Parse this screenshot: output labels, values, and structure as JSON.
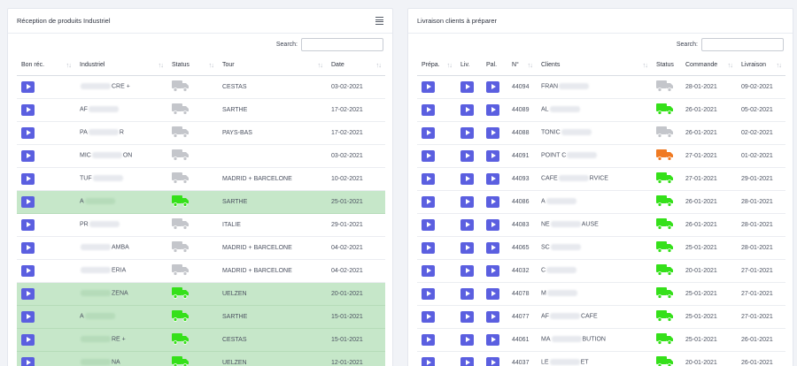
{
  "left": {
    "title": "Réception de produits Industriel",
    "search_label": "Search:",
    "search_value": "",
    "columns": [
      "Bon réc.",
      "Industriel",
      "Status",
      "Tour",
      "Date"
    ],
    "rows": [
      {
        "industriel_a": "",
        "industriel_b": "CRE +",
        "status": "grey",
        "tour": "CESTAS",
        "date": "03-02-2021",
        "green": false
      },
      {
        "industriel_a": "AF",
        "industriel_b": "",
        "status": "grey",
        "tour": "SARTHE",
        "date": "17-02-2021",
        "green": false
      },
      {
        "industriel_a": "PA",
        "industriel_b": "R",
        "status": "grey",
        "tour": "PAYS-BAS",
        "date": "17-02-2021",
        "green": false
      },
      {
        "industriel_a": "MIC",
        "industriel_b": "ON",
        "status": "grey",
        "tour": "",
        "date": "03-02-2021",
        "green": false
      },
      {
        "industriel_a": "TUF",
        "industriel_b": "",
        "status": "grey",
        "tour": "MADRID + BARCELONE",
        "date": "10-02-2021",
        "green": false
      },
      {
        "industriel_a": "A",
        "industriel_b": "",
        "status": "green",
        "tour": "SARTHE",
        "date": "25-01-2021",
        "green": true
      },
      {
        "industriel_a": "PR",
        "industriel_b": "",
        "status": "grey",
        "tour": "ITALIE",
        "date": "29-01-2021",
        "green": false
      },
      {
        "industriel_a": "",
        "industriel_b": "AMBA",
        "status": "grey",
        "tour": "MADRID + BARCELONE",
        "date": "04-02-2021",
        "green": false
      },
      {
        "industriel_a": "",
        "industriel_b": "ERIA",
        "status": "grey",
        "tour": "MADRID + BARCELONE",
        "date": "04-02-2021",
        "green": false
      },
      {
        "industriel_a": "",
        "industriel_b": "ZENA",
        "status": "green",
        "tour": "UELZEN",
        "date": "20-01-2021",
        "green": true
      },
      {
        "industriel_a": "A",
        "industriel_b": "",
        "status": "green",
        "tour": "SARTHE",
        "date": "15-01-2021",
        "green": true
      },
      {
        "industriel_a": "",
        "industriel_b": "RE +",
        "status": "green",
        "tour": "CESTAS",
        "date": "15-01-2021",
        "green": true
      },
      {
        "industriel_a": "",
        "industriel_b": "NA",
        "status": "green",
        "tour": "UELZEN",
        "date": "12-01-2021",
        "green": true
      }
    ]
  },
  "right": {
    "title": "Livraison clients à préparer",
    "search_label": "Search:",
    "search_value": "",
    "columns": [
      "Prépa.",
      "Liv.",
      "Pal.",
      "N°",
      "Clients",
      "Status",
      "Commande",
      "Livraison"
    ],
    "rows": [
      {
        "num": "44094",
        "client_a": "FRAN",
        "client_b": "",
        "status": "grey",
        "commande": "28-01-2021",
        "livraison": "09-02-2021"
      },
      {
        "num": "44089",
        "client_a": "AL",
        "client_b": "",
        "status": "green",
        "commande": "26-01-2021",
        "livraison": "05-02-2021"
      },
      {
        "num": "44088",
        "client_a": "TONIC",
        "client_b": "",
        "status": "grey",
        "commande": "26-01-2021",
        "livraison": "02-02-2021"
      },
      {
        "num": "44091",
        "client_a": "POINT C",
        "client_b": "",
        "status": "orange",
        "commande": "27-01-2021",
        "livraison": "01-02-2021"
      },
      {
        "num": "44093",
        "client_a": "CAFE",
        "client_b": "RVICE",
        "status": "green",
        "commande": "27-01-2021",
        "livraison": "29-01-2021"
      },
      {
        "num": "44086",
        "client_a": "A",
        "client_b": "",
        "status": "green",
        "commande": "26-01-2021",
        "livraison": "28-01-2021"
      },
      {
        "num": "44083",
        "client_a": "NE",
        "client_b": "AUSE",
        "status": "green",
        "commande": "26-01-2021",
        "livraison": "28-01-2021"
      },
      {
        "num": "44065",
        "client_a": "SC",
        "client_b": "",
        "status": "green",
        "commande": "25-01-2021",
        "livraison": "28-01-2021"
      },
      {
        "num": "44032",
        "client_a": "C",
        "client_b": "",
        "status": "green",
        "commande": "20-01-2021",
        "livraison": "27-01-2021"
      },
      {
        "num": "44078",
        "client_a": "M",
        "client_b": "",
        "status": "green",
        "commande": "25-01-2021",
        "livraison": "27-01-2021"
      },
      {
        "num": "44077",
        "client_a": "AF",
        "client_b": "CAFE",
        "status": "green",
        "commande": "25-01-2021",
        "livraison": "27-01-2021"
      },
      {
        "num": "44061",
        "client_a": "MA",
        "client_b": "BUTION",
        "status": "green",
        "commande": "25-01-2021",
        "livraison": "26-01-2021"
      },
      {
        "num": "44037",
        "client_a": "LE",
        "client_b": "ET",
        "status": "green",
        "commande": "20-01-2021",
        "livraison": "26-01-2021"
      }
    ]
  },
  "colors": {
    "accent": "#5b5fe0",
    "truck_grey": "#c4c6cb",
    "truck_green": "#35e01a",
    "truck_orange": "#f07a22",
    "row_green": "#c6e7c9"
  },
  "icons": {
    "menu": "menu-icon",
    "play": "play-icon",
    "truck": "truck-icon",
    "sort": "sort-icon"
  }
}
